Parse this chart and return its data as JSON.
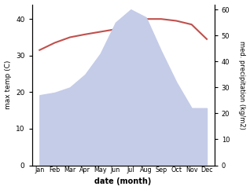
{
  "months": [
    "Jan",
    "Feb",
    "Mar",
    "Apr",
    "May",
    "Jun",
    "Jul",
    "Aug",
    "Sep",
    "Oct",
    "Nov",
    "Dec"
  ],
  "x": [
    0,
    1,
    2,
    3,
    4,
    5,
    6,
    7,
    8,
    9,
    10,
    11
  ],
  "temperature": [
    31.5,
    33.5,
    35.0,
    35.8,
    36.5,
    37.2,
    37.5,
    40.0,
    40.0,
    39.5,
    38.5,
    34.5
  ],
  "precipitation_right": [
    27,
    28,
    30,
    35,
    43,
    55,
    60,
    57,
    44,
    32,
    22,
    22
  ],
  "temp_color": "#c0504d",
  "precip_fill_color": "#c5cce8",
  "ylabel_left": "max temp (C)",
  "ylabel_right": "med. precipitation (kg/m2)",
  "xlabel": "date (month)",
  "ylim_left": [
    0,
    44
  ],
  "ylim_right": [
    0,
    62
  ],
  "yticks_left": [
    0,
    10,
    20,
    30,
    40
  ],
  "yticks_right": [
    0,
    10,
    20,
    30,
    40,
    50,
    60
  ],
  "background_color": "#ffffff"
}
